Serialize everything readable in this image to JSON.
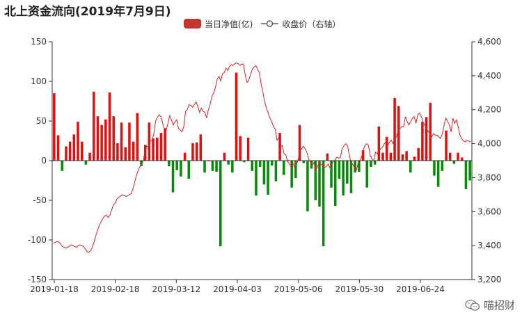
{
  "title": "北上资金流向(2019年7月9日)",
  "legend": {
    "bar_label": "当日净值(亿)",
    "line_label": "收盘价（右轴）"
  },
  "colors": {
    "positive": "#e01010",
    "negative": "#0a8a0a",
    "line": "#e02020",
    "legend_bar": "#c23531",
    "axis": "#333333"
  },
  "watermark": {
    "text": "喵招财",
    "icon": "wechat-icon"
  },
  "chart_data": {
    "type": "bar+line",
    "title": "北上资金流向(2019年7月9日)",
    "x_tick_labels": [
      "2019-01-18",
      "2019-02-18",
      "2019-03-12",
      "2019-04-03",
      "2019-05-06",
      "2019-05-30",
      "2019-06-24"
    ],
    "left_axis": {
      "min": -150,
      "max": 150,
      "ticks": [
        -150,
        -100,
        -50,
        0,
        50,
        100,
        150
      ],
      "tick_labels": [
        "-150",
        "-100",
        "-50",
        "0",
        "50",
        "100",
        "150"
      ]
    },
    "right_axis": {
      "min": 3200,
      "max": 4600,
      "ticks": [
        3200,
        3400,
        3600,
        3800,
        4000,
        4200,
        4400,
        4600
      ],
      "tick_labels": [
        "3,200",
        "3,400",
        "3,600",
        "3,800",
        "4,000",
        "4,200",
        "4,400",
        "4,600"
      ]
    },
    "bar_series": {
      "name": "当日净值(亿)",
      "values": [
        85,
        32,
        -13,
        18,
        24,
        33,
        49,
        24,
        -5,
        10,
        87,
        56,
        45,
        52,
        86,
        56,
        22,
        48,
        17,
        48,
        24,
        60,
        -7,
        20,
        48,
        28,
        29,
        35,
        41,
        -7,
        -40,
        -12,
        -20,
        10,
        -23,
        22,
        23,
        33,
        -15,
        0,
        -13,
        -14,
        -108,
        10,
        -5,
        -15,
        111,
        31,
        -2,
        29,
        -13,
        -44,
        -8,
        -30,
        -43,
        -6,
        -26,
        35,
        -18,
        0,
        -34,
        -22,
        45,
        -3,
        -64,
        -10,
        -50,
        -58,
        -108,
        9,
        -34,
        -57,
        -23,
        -44,
        -29,
        -41,
        -15,
        -14,
        13,
        -34,
        -8,
        -5,
        43,
        10,
        30,
        10,
        79,
        69,
        8,
        12,
        -15,
        5,
        16,
        49,
        55,
        73,
        -19,
        -33,
        -13,
        38,
        10,
        -4,
        10,
        4,
        -36,
        -25
      ]
    },
    "line_series": {
      "name": "收盘价（右轴）",
      "values": [
        3415,
        3420,
        3425,
        3420,
        3410,
        3395,
        3390,
        3385,
        3390,
        3395,
        3405,
        3400,
        3395,
        3390,
        3400,
        3405,
        3400,
        3395,
        3380,
        3365,
        3360,
        3370,
        3390,
        3420,
        3460,
        3490,
        3520,
        3540,
        3560,
        3575,
        3580,
        3565,
        3580,
        3610,
        3640,
        3650,
        3675,
        3685,
        3690,
        3700,
        3695,
        3690,
        3692,
        3700,
        3705,
        3730,
        3770,
        3810,
        3840,
        3865,
        3875,
        3900,
        3960,
        3985,
        3980,
        4015,
        4020,
        4060,
        4135,
        4155,
        4170,
        4160,
        4120,
        4090,
        4080,
        4120,
        4165,
        4140,
        4110,
        4130,
        4140,
        4090,
        4080,
        4070,
        4100,
        4190,
        4200,
        4230,
        4225,
        4215,
        4230,
        4245,
        4220,
        4185,
        4210,
        4190,
        4185,
        4150,
        4200,
        4230,
        4280,
        4300,
        4330,
        4380,
        4395,
        4370,
        4410,
        4420,
        4445,
        4430,
        4455,
        4465,
        4460,
        4470,
        4475,
        4470,
        4460,
        4470,
        4465,
        4400,
        4360,
        4375,
        4410,
        4440,
        4450,
        4460,
        4435,
        4420,
        4350,
        4300,
        4245,
        4210,
        4180,
        4150,
        4130,
        4100,
        4085,
        4020,
        4035,
        3980,
        3990,
        3940,
        3935,
        3895,
        3880,
        3870,
        3890,
        3860,
        3880,
        3900,
        3960,
        3970,
        3985,
        3970,
        3950,
        3910,
        3890,
        3870,
        3890,
        3840,
        3865,
        3890,
        3875,
        3880,
        3860,
        3865,
        3880,
        3860,
        3875,
        3895,
        3905,
        3920,
        3915,
        3918,
        3970,
        3985,
        4000,
        3990,
        3940,
        3890,
        3880,
        3860,
        3840,
        3880,
        3900,
        3920,
        3960,
        3990,
        4000,
        3990,
        3930,
        3910,
        3900,
        3950,
        3940,
        3960,
        3970,
        3980,
        4000,
        4010,
        3990,
        4010,
        4020,
        4000,
        4030,
        4040,
        4080,
        4090,
        4100,
        4100,
        4160,
        4130,
        4110,
        4130,
        4150,
        4160,
        4120,
        4170,
        4180,
        4160,
        4130,
        4110,
        4090,
        4070,
        4060,
        4040,
        4060,
        4050,
        4050,
        4040,
        4030,
        4060,
        4110,
        4150,
        4130,
        4110,
        4070,
        4150,
        4120,
        4140,
        4100,
        4050,
        4030,
        4015,
        4010,
        4020,
        4015,
        4010
      ]
    },
    "grid": false,
    "legend_position": "top-center"
  }
}
